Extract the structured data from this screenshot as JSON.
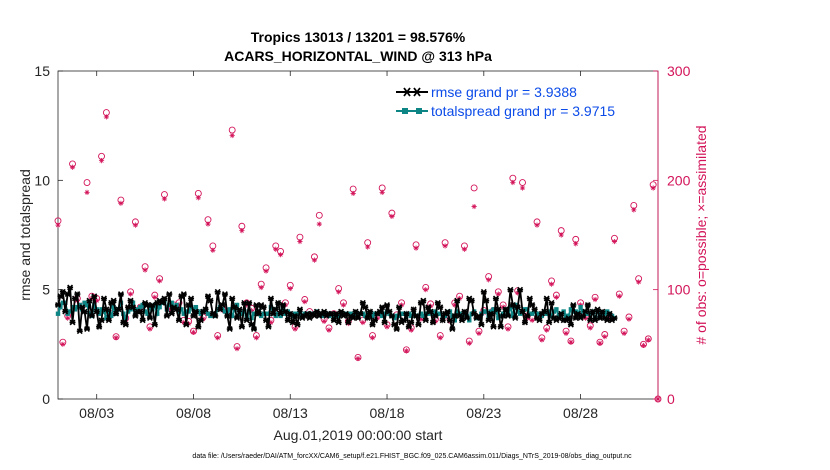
{
  "chart_data": {
    "type": "line",
    "title": "Tropics 13013 / 13201 = 98.576%",
    "subtitle": "ACARS_HORIZONTAL_WIND @ 313 hPa",
    "xlabel": "Aug.01,2019 00:00:00 start",
    "ylabel": "rmse and totalspread",
    "ylabel_right": "# of obs: o=possible; ×=assimilated",
    "footer": "data file: /Users/raeder/DAI/ATM_forcXX/CAM6_setup/f.e21.FHIST_BGC.f09_025.CAM6assim.011/Diags_NTrS_2019-08/obs_diag_output.nc",
    "xlim": [
      1,
      32
    ],
    "ylim": [
      0,
      15
    ],
    "ylim_right": [
      0,
      300
    ],
    "x_ticks": [
      3,
      8,
      13,
      18,
      23,
      28
    ],
    "x_tick_labels": [
      "08/03",
      "08/08",
      "08/13",
      "08/18",
      "08/23",
      "08/28"
    ],
    "y_ticks": [
      "0",
      "5",
      "10",
      "15"
    ],
    "y_ticks_right": [
      "0",
      "100",
      "200",
      "300"
    ],
    "legend_position": "top-right",
    "colors": {
      "rmse": "#000000",
      "totalspread": "#0e8585",
      "counts": "#d3145a",
      "legend_text": "#0b4be8",
      "axis": "#262626"
    },
    "series": [
      {
        "name": "rmse grand pr = 3.9388",
        "color": "#000000",
        "values": [
          4.3,
          4.7,
          4.9,
          4.0,
          4.8,
          5.1,
          3.5,
          4.6,
          4.8,
          3.1,
          4.2,
          4.0,
          3.2,
          4.5,
          3.8,
          4.7,
          4.0,
          3.3,
          3.6,
          4.6,
          4.1,
          3.6,
          4.4,
          4.5,
          3.9,
          4.1,
          4.8,
          3.5,
          3.4,
          4.2,
          4.5,
          4.2,
          3.8,
          4.0,
          4.0,
          3.6,
          4.4,
          4.3,
          3.7,
          4.3,
          3.4,
          4.4,
          4.5,
          4.4,
          4.6,
          3.8,
          4.8,
          3.9,
          4.2,
          4.1,
          3.6,
          4.7,
          4.8,
          3.4,
          4.3,
          4.6,
          3.8,
          4.0,
          3.3,
          3.6,
          4.0,
          4.1,
          4.7,
          4.5,
          3.9,
          3.8,
          4.9,
          4.1,
          4.3,
          4.8,
          3.8,
          3.2,
          4.6,
          4.2,
          3.7,
          4.1,
          3.3,
          4.4,
          3.6,
          4.4,
          3.4,
          3.2,
          4.3,
          3.9,
          4.3,
          4.2,
          3.6,
          3.3,
          4.6,
          3.9,
          4.1,
          4.4,
          3.9,
          4.3,
          4.0,
          3.6,
          3.9,
          3.5,
          3.8,
          3.4,
          4.1,
          3.7,
          3.8,
          3.9,
          3.7,
          3.9,
          3.8,
          4.0,
          3.8,
          3.9,
          4.0,
          3.8,
          3.9,
          3.9,
          3.6,
          3.9,
          3.5,
          4.0,
          3.8,
          3.9,
          3.5,
          3.8,
          3.7,
          4.0,
          3.7,
          3.9,
          4.4,
          4.2,
          3.7,
          4.0,
          3.4,
          3.6,
          3.9,
          4.0,
          4.2,
          3.5,
          4.3,
          4.0,
          3.8,
          3.4,
          3.2,
          4.2,
          3.5,
          3.6,
          3.9,
          3.3,
          3.5,
          4.1,
          3.8,
          3.4,
          4.4,
          4.5,
          3.6,
          4.2,
          4.0,
          3.5,
          3.8,
          4.4,
          4.2,
          3.6,
          3.9,
          4.0,
          3.6,
          3.2,
          3.8,
          4.5,
          3.8,
          3.6,
          4.0,
          3.7,
          4.6,
          4.5,
          3.9,
          3.7,
          3.8,
          3.4,
          4.9,
          4.5,
          3.6,
          3.9,
          3.3,
          4.6,
          4.1,
          3.3,
          3.8,
          4.1,
          3.8,
          5.0,
          4.3,
          3.7,
          4.2,
          5.0,
          4.0,
          3.5,
          3.8,
          4.6,
          4.3,
          4.1,
          3.7,
          3.6,
          3.9,
          4.0,
          4.6,
          3.5,
          4.4,
          3.7,
          3.6,
          3.7,
          3.9,
          3.6,
          3.6,
          3.7,
          3.4,
          4.3,
          3.7,
          3.9,
          3.7,
          3.8,
          4.0,
          4.3,
          3.6,
          4.0,
          3.6,
          4.1,
          3.7,
          4.0,
          3.7,
          3.6,
          3.9,
          3.6,
          3.7
        ],
        "x_start": 1.0,
        "x_step": 0.125
      },
      {
        "name": "totalspread grand pr = 3.9715",
        "color": "#0e8585",
        "values": [
          3.9,
          4.2,
          4.4,
          4.4,
          3.9,
          4.0,
          4.2,
          4.1,
          4.2,
          4.3,
          4.1,
          4.4,
          4.3,
          3.9,
          3.8,
          4.3,
          4.1,
          3.9,
          4.1,
          4.0,
          3.7,
          4.0,
          3.8,
          4.2,
          3.9,
          4.1,
          4.4,
          3.9,
          3.7,
          4.0,
          4.1,
          4.4,
          4.0,
          4.1,
          4.2,
          4.3,
          4.0,
          3.9,
          4.2,
          4.1,
          4.3,
          3.9,
          4.2,
          4.4,
          4.5,
          4.1,
          4.3,
          4.4,
          4.2,
          4.3,
          4.0,
          4.1,
          3.9,
          4.0,
          4.0,
          4.2,
          4.1,
          4.2,
          4.0,
          3.9,
          4.0,
          4.1,
          3.9,
          3.8,
          3.9,
          3.8,
          4.1,
          4.2,
          4.1,
          4.0,
          3.9,
          4.1,
          3.8,
          4.1,
          4.3,
          3.9,
          3.9,
          4.0,
          3.8,
          4.0,
          3.7,
          3.9,
          3.9,
          4.0,
          3.8,
          3.9,
          3.9,
          3.9,
          4.2,
          4.1,
          3.8,
          3.9,
          3.8,
          4.1,
          3.9,
          4.0,
          3.9,
          3.8,
          3.9,
          3.9,
          3.9,
          3.8,
          3.9,
          3.9,
          3.9,
          3.9,
          3.9,
          4.0,
          3.9,
          3.8,
          3.9,
          3.9,
          3.8,
          3.9,
          3.8,
          3.8,
          3.8,
          3.9,
          3.9,
          3.9,
          3.9,
          3.9,
          3.8,
          3.9,
          3.9,
          3.9,
          3.9,
          3.8,
          3.9,
          3.9,
          3.8,
          3.9,
          3.9,
          3.9,
          3.8,
          3.9,
          4.0,
          3.9,
          3.8,
          3.7,
          3.8,
          3.8,
          3.9,
          3.9,
          3.8,
          3.9,
          3.8,
          3.9,
          3.8,
          3.8,
          3.9,
          3.8,
          3.9,
          3.9,
          4.0,
          3.9,
          4.0,
          3.9,
          3.9,
          3.7,
          3.8,
          3.9,
          4.0,
          3.8,
          3.6,
          4.0,
          3.9,
          3.8,
          3.9,
          3.8,
          3.6,
          3.9,
          4.0,
          3.7,
          3.7,
          3.9,
          4.0,
          4.0,
          3.8,
          4.0,
          4.1,
          4.0,
          3.7,
          3.8,
          3.9,
          4.1,
          3.9,
          4.2,
          3.8,
          4.3,
          4.0,
          3.9,
          4.0,
          4.1,
          4.1,
          3.9,
          3.9,
          4.0,
          3.9,
          3.9,
          3.8,
          4.0,
          3.9,
          4.0,
          3.8,
          4.0,
          4.1,
          3.8,
          3.9,
          4.0,
          3.8,
          3.8,
          4.1,
          4.0,
          4.0,
          3.9,
          4.2,
          4.0,
          3.9,
          3.9,
          3.9,
          4.0,
          3.7,
          4.0,
          3.9,
          3.9,
          3.9,
          4.0,
          3.9,
          3.8,
          3.7
        ],
        "x_start": 1.0,
        "x_step": 0.125
      }
    ],
    "obs_counts": {
      "x": [
        1.0,
        1.25,
        1.5,
        1.75,
        2.0,
        2.25,
        2.5,
        2.75,
        3.0,
        3.25,
        3.5,
        3.75,
        4.0,
        4.25,
        4.5,
        4.75,
        5.0,
        5.25,
        5.5,
        5.75,
        6.0,
        6.25,
        6.5,
        6.75,
        7.0,
        7.25,
        7.5,
        7.75,
        8.0,
        8.25,
        8.5,
        8.75,
        9.0,
        9.25,
        9.5,
        9.75,
        10.0,
        10.25,
        10.5,
        10.75,
        11.0,
        11.25,
        11.5,
        11.75,
        12.0,
        12.25,
        12.5,
        12.75,
        13.0,
        13.25,
        13.5,
        13.75,
        14.0,
        14.25,
        14.5,
        14.75,
        15.0,
        15.25,
        15.5,
        15.75,
        16.0,
        16.25,
        16.5,
        16.75,
        17.0,
        17.25,
        17.5,
        17.75,
        18.0,
        18.25,
        18.5,
        18.75,
        19.0,
        19.25,
        19.5,
        19.75,
        20.0,
        20.25,
        20.5,
        20.75,
        21.0,
        21.25,
        21.5,
        21.75,
        22.0,
        22.25,
        22.5,
        22.75,
        23.0,
        23.25,
        23.5,
        23.75,
        24.0,
        24.25,
        24.5,
        24.75,
        25.0,
        25.25,
        25.5,
        25.75,
        26.0,
        26.25,
        26.5,
        26.75,
        27.0,
        27.25,
        27.5,
        27.75,
        28.0,
        28.25,
        28.5,
        28.75,
        29.0,
        29.25,
        29.5,
        29.75,
        30.0,
        30.25,
        30.5,
        30.75,
        31.0,
        31.25,
        31.5,
        31.75,
        32.0
      ],
      "possible": [
        163,
        52,
        76,
        215,
        92,
        85,
        198,
        94,
        92,
        222,
        262,
        78,
        57,
        182,
        74,
        98,
        162,
        84,
        121,
        66,
        95,
        110,
        187,
        84,
        86,
        88,
        72,
        71,
        62,
        188,
        75,
        164,
        140,
        58,
        83,
        80,
        246,
        48,
        158,
        88,
        83,
        58,
        105,
        120,
        72,
        140,
        135,
        88,
        104,
        66,
        148,
        91,
        80,
        130,
        168,
        73,
        65,
        78,
        101,
        88,
        71,
        192,
        38,
        72,
        143,
        58,
        76,
        193,
        68,
        170,
        77,
        88,
        45,
        65,
        141,
        75,
        102,
        87,
        73,
        58,
        143,
        73,
        88,
        94,
        140,
        53,
        193,
        62,
        81,
        112,
        81,
        98,
        86,
        66,
        202,
        99,
        198,
        76,
        74,
        162,
        56,
        65,
        108,
        95,
        154,
        62,
        53,
        146,
        88,
        76,
        67,
        93,
        52,
        59,
        76,
        147,
        96,
        62,
        75,
        177,
        110,
        50,
        55,
        196,
        0
      ],
      "assimilated": [
        159,
        50,
        74,
        212,
        90,
        83,
        189,
        92,
        90,
        218,
        258,
        76,
        56,
        179,
        72,
        96,
        159,
        82,
        118,
        64,
        93,
        108,
        183,
        82,
        84,
        86,
        70,
        69,
        61,
        184,
        73,
        160,
        136,
        56,
        81,
        78,
        241,
        46,
        154,
        86,
        81,
        56,
        102,
        117,
        70,
        137,
        132,
        86,
        101,
        64,
        144,
        89,
        78,
        127,
        160,
        71,
        63,
        76,
        98,
        86,
        69,
        188,
        37,
        70,
        139,
        56,
        74,
        189,
        66,
        167,
        75,
        86,
        44,
        63,
        138,
        73,
        100,
        85,
        71,
        56,
        140,
        71,
        86,
        92,
        137,
        51,
        176,
        60,
        79,
        109,
        79,
        96,
        84,
        64,
        198,
        97,
        193,
        74,
        72,
        159,
        54,
        63,
        105,
        93,
        150,
        60,
        52,
        142,
        86,
        74,
        65,
        91,
        51,
        57,
        74,
        144,
        94,
        60,
        73,
        173,
        107,
        49,
        54,
        193,
        0
      ]
    }
  }
}
